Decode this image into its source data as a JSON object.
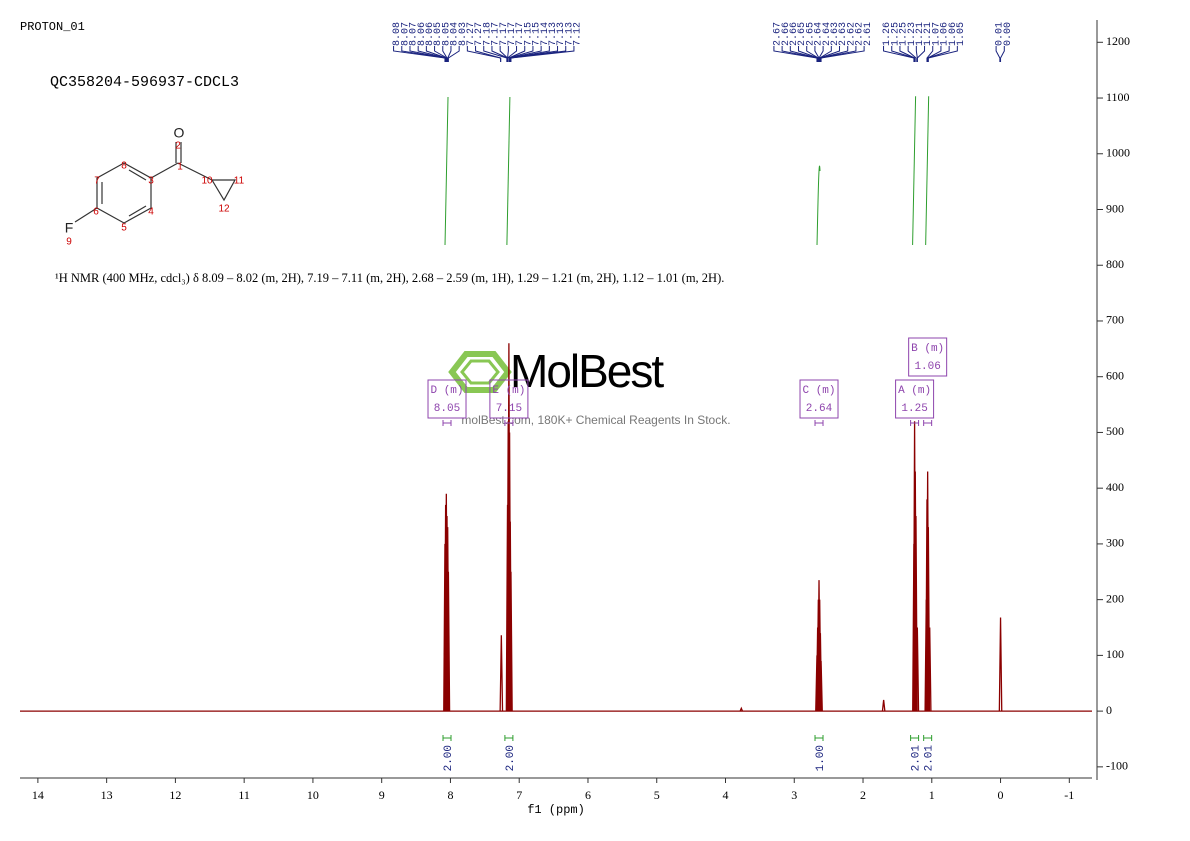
{
  "chart_data": {
    "type": "nmr",
    "title": "PROTON_01",
    "subtitle": "QC358204-596937-CDCL3",
    "description": "¹H NMR (400 MHz, cdcl₃) δ 8.09 – 8.02 (m, 2H), 7.19 – 7.11 (m, 2H), 2.68 – 2.59 (m, 1H), 1.29 – 1.21 (m, 2H), 1.12 – 1.01 (m, 2H).",
    "x_label": "f1 (ppm)",
    "xlim": [
      14.26,
      -1.33
    ],
    "xticks": [
      14,
      13,
      12,
      11,
      10,
      9,
      8,
      7,
      6,
      5,
      4,
      3,
      2,
      1,
      0,
      -1
    ],
    "ylim": [
      -120,
      1240
    ],
    "yticks": [
      -100,
      0,
      100,
      200,
      300,
      400,
      500,
      600,
      700,
      800,
      900,
      1000,
      1100,
      1200
    ],
    "spectrum": {
      "color": "#8b0000",
      "x": [
        8.08,
        8.07,
        8.06,
        8.05,
        8.04,
        8.03,
        7.26,
        7.17,
        7.16,
        7.15,
        7.14,
        7.13,
        7.12,
        3.77,
        2.67,
        2.66,
        2.65,
        2.64,
        2.63,
        2.62,
        2.61,
        1.7,
        1.26,
        1.25,
        1.24,
        1.23,
        1.21,
        1.08,
        1.07,
        1.06,
        1.05,
        1.03,
        0.0
      ],
      "values": [
        300,
        370,
        390,
        350,
        330,
        250,
        136,
        370,
        520,
        660,
        500,
        340,
        250,
        5,
        100,
        150,
        200,
        235,
        200,
        140,
        90,
        20,
        300,
        520,
        430,
        350,
        150,
        200,
        380,
        430,
        330,
        150,
        168
      ]
    },
    "peak_labels": [
      8.08,
      8.07,
      8.07,
      8.06,
      8.06,
      8.05,
      8.05,
      8.04,
      8.03,
      7.27,
      7.27,
      7.18,
      7.17,
      7.17,
      7.17,
      7.17,
      7.15,
      7.15,
      7.14,
      7.13,
      7.13,
      7.13,
      7.12,
      2.67,
      2.66,
      2.66,
      2.65,
      2.65,
      2.64,
      2.64,
      2.63,
      2.63,
      2.62,
      2.62,
      2.61,
      1.26,
      1.25,
      1.25,
      1.23,
      1.21,
      1.21,
      1.07,
      1.06,
      1.06,
      1.05,
      0.01,
      {
        "value": 0,
        "label": "0.00"
      }
    ],
    "multiplets": [
      {
        "label": "D (m)",
        "shift": 8.05,
        "integral": {
          "value": 2,
          "label": "2.00"
        }
      },
      {
        "label": "E (m)",
        "shift": 7.15,
        "integral": {
          "value": 2,
          "label": "2.00"
        }
      },
      {
        "label": "C (m)",
        "shift": 2.64,
        "integral": {
          "value": 1,
          "label": "1.00"
        }
      },
      {
        "label": "A (m)",
        "shift": 1.25,
        "integral": 2.01
      },
      {
        "label": "B (m)",
        "shift": 1.06,
        "integral": 2.01
      }
    ],
    "structure": {
      "atoms": [
        "O",
        "2",
        "1",
        "3",
        "8",
        "7",
        "6",
        "4",
        "5",
        "F",
        "9",
        "10",
        "11",
        "12"
      ]
    },
    "watermark": {
      "brand": "MolBest",
      "tagline": "molBest.com, 180K+ Chemical Reagents In Stock."
    }
  }
}
